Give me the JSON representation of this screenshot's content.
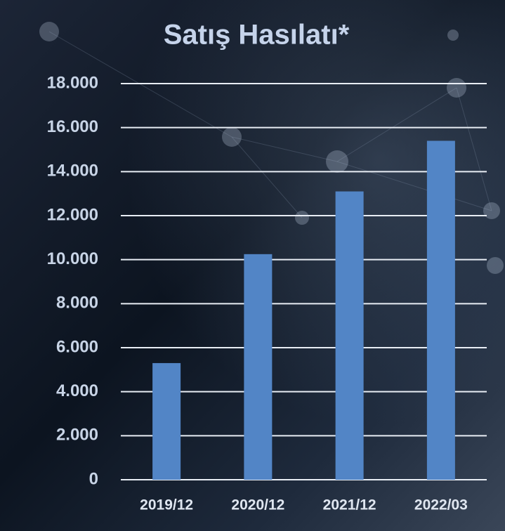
{
  "chart_data": {
    "type": "bar",
    "title": "Satış Hasılatı*",
    "categories": [
      "2019/12",
      "2020/12",
      "2021/12",
      "2022/03"
    ],
    "values": [
      5300,
      10250,
      13100,
      15400
    ],
    "color": "#5285c6",
    "ylim": [
      0,
      18000
    ],
    "yticks": [
      0,
      {
        "value": 2000,
        "label": "2.000"
      },
      {
        "value": 4000,
        "label": "4.000"
      },
      {
        "value": 6000,
        "label": "6.000"
      },
      {
        "value": 8000,
        "label": "8.000"
      },
      {
        "value": 10000,
        "label": "10.000"
      },
      {
        "value": 12000,
        "label": "12.000"
      },
      {
        "value": 14000,
        "label": "14.000"
      },
      {
        "value": 16000,
        "label": "16.000"
      },
      {
        "value": 18000,
        "label": "18.000"
      }
    ],
    "grid": true
  }
}
